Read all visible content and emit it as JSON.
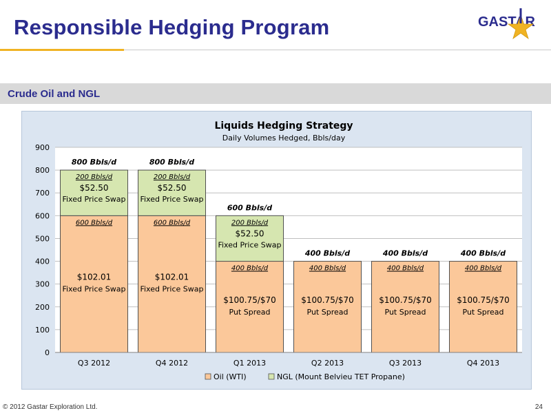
{
  "slide": {
    "title": "Responsible Hedging Program",
    "section": "Crude Oil and NGL",
    "logo_text": "GASTAR",
    "copyright": "© 2012 Gastar Exploration Ltd.",
    "page_number": "24"
  },
  "colors": {
    "title": "#2b2c8e",
    "accent": "#f0b323",
    "oil": "#fbc89a",
    "ngl": "#d6e6b0",
    "bar_border": "#505050"
  },
  "chart_data": {
    "type": "bar",
    "stacked": true,
    "title": "Liquids Hedging Strategy",
    "subtitle": "Daily Volumes Hedged, Bbls/day",
    "categories": [
      "Q3 2012",
      "Q4 2012",
      "Q1 2013",
      "Q2 2013",
      "Q3 2013",
      "Q4 2013"
    ],
    "ylim": [
      0,
      900
    ],
    "yticks": [
      "0",
      "100",
      "200",
      "300",
      "400",
      "500",
      "600",
      "700",
      "800",
      "900"
    ],
    "grid": true,
    "legend_position": "bottom",
    "series": [
      {
        "name": "Oil (WTI)",
        "values": [
          600,
          600,
          400,
          400,
          400,
          400
        ],
        "segment_volume_labels": [
          "600 Bbls/d",
          "600 Bbls/d",
          "400 Bbls/d",
          "400 Bbls/d",
          "400 Bbls/d",
          "400 Bbls/d"
        ],
        "price_labels": [
          "$102.01",
          "$102.01",
          "$100.75/$70",
          "$100.75/$70",
          "$100.75/$70",
          "$100.75/$70"
        ],
        "type_labels": [
          "Fixed Price Swap",
          "Fixed Price Swap",
          "Put Spread",
          "Put Spread",
          "Put Spread",
          "Put Spread"
        ]
      },
      {
        "name": "NGL (Mount Belvieu TET Propane)",
        "values": [
          200,
          200,
          200,
          0,
          0,
          0
        ],
        "segment_volume_labels": [
          "200 Bbls/d",
          "200 Bbls/d",
          "200 Bbls/d",
          "",
          "",
          ""
        ],
        "price_labels": [
          "$52.50",
          "$52.50",
          "$52.50",
          "",
          "",
          ""
        ],
        "type_labels": [
          "Fixed Price Swap",
          "Fixed Price Swap",
          "Fixed Price Swap",
          "",
          "",
          ""
        ]
      }
    ],
    "total_labels": [
      "800 Bbls/d",
      "800 Bbls/d",
      "600 Bbls/d",
      "400 Bbls/d",
      "400 Bbls/d",
      "400 Bbls/d"
    ]
  }
}
